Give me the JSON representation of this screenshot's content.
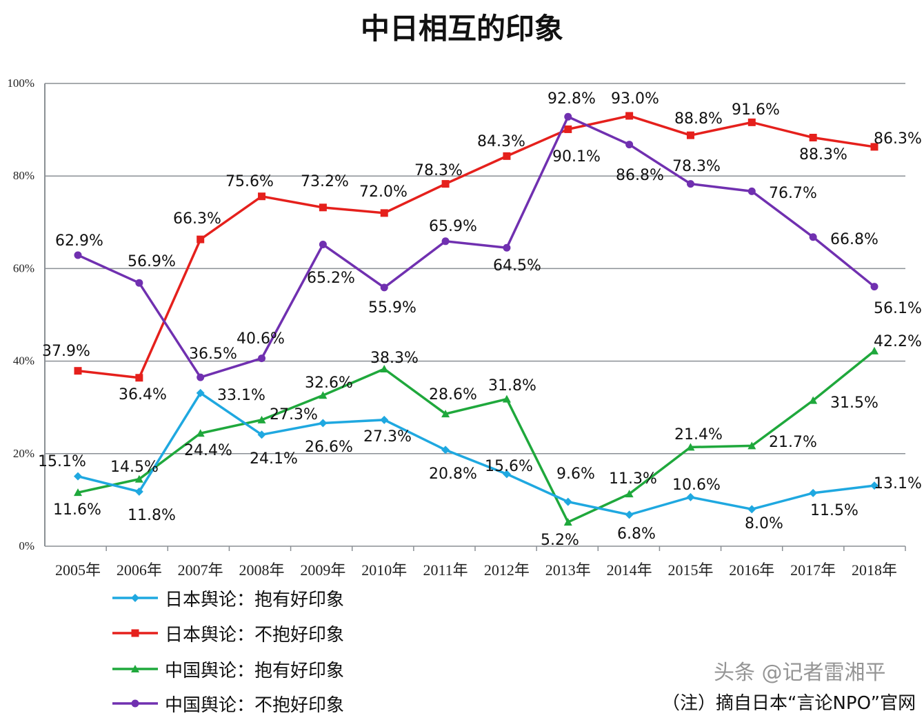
{
  "chart_data": {
    "type": "line",
    "title": "中日相互的印象",
    "categories": [
      "2005年",
      "2006年",
      "2007年",
      "2008年",
      "2009年",
      "2010年",
      "2011年",
      "2012年",
      "2013年",
      "2014年",
      "2015年",
      "2016年",
      "2017年",
      "2018年"
    ],
    "ylim": [
      0,
      100
    ],
    "yticks": [
      "0%",
      "20%",
      "40%",
      "60%",
      "80%",
      "100%"
    ],
    "grid": true,
    "legend_position": "bottom-left",
    "series": [
      {
        "name": "日本舆论：抱有好印象",
        "color": "#1fa8e0",
        "marker": "diamond",
        "values": [
          15.1,
          11.8,
          33.1,
          24.1,
          26.6,
          27.3,
          20.8,
          15.6,
          9.6,
          6.8,
          10.6,
          8.0,
          11.5,
          13.1
        ]
      },
      {
        "name": "日本舆论：不抱好印象",
        "color": "#e5201c",
        "marker": "square",
        "values": [
          37.9,
          36.4,
          66.3,
          75.6,
          73.2,
          72.0,
          78.3,
          84.3,
          90.1,
          93.0,
          88.8,
          91.6,
          88.3,
          86.3
        ]
      },
      {
        "name": "中国舆论：抱有好印象",
        "color": "#1fa83c",
        "marker": "triangle",
        "values": [
          11.6,
          14.5,
          24.4,
          27.3,
          32.6,
          38.3,
          28.6,
          31.8,
          5.2,
          11.3,
          21.4,
          21.7,
          31.5,
          42.2
        ]
      },
      {
        "name": "中国舆论：不抱好印象",
        "color": "#7030b0",
        "marker": "circle",
        "values": [
          62.9,
          56.9,
          36.5,
          40.6,
          65.2,
          55.9,
          65.9,
          64.5,
          92.8,
          86.8,
          78.3,
          76.7,
          66.8,
          56.1
        ]
      }
    ]
  },
  "note": "（注）摘自日本“言论NPO”官网",
  "watermark": "头条 @记者雷湘平"
}
